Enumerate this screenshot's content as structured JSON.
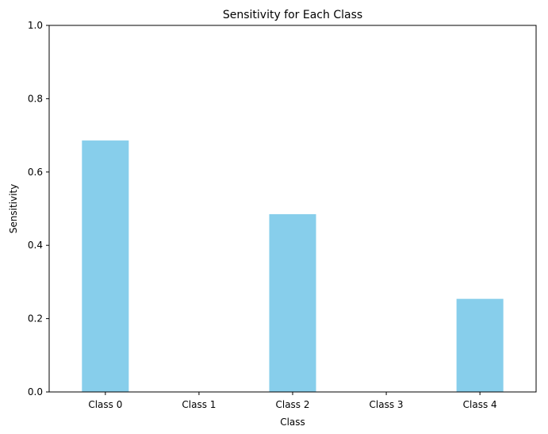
{
  "chart_data": {
    "type": "bar",
    "title": "Sensitivity for Each Class",
    "xlabel": "Class",
    "ylabel": "Sensitivity",
    "categories": [
      "Class 0",
      "Class 1",
      "Class 2",
      "Class 3",
      "Class 4"
    ],
    "values": [
      0.686,
      0.0,
      0.485,
      0.0,
      0.254
    ],
    "ylim": [
      0,
      1
    ],
    "yticks": [
      "0.0",
      "0.2",
      "0.4",
      "0.6",
      "0.8",
      "1.0"
    ],
    "grid": false,
    "bar_color": "#87CEEB"
  }
}
